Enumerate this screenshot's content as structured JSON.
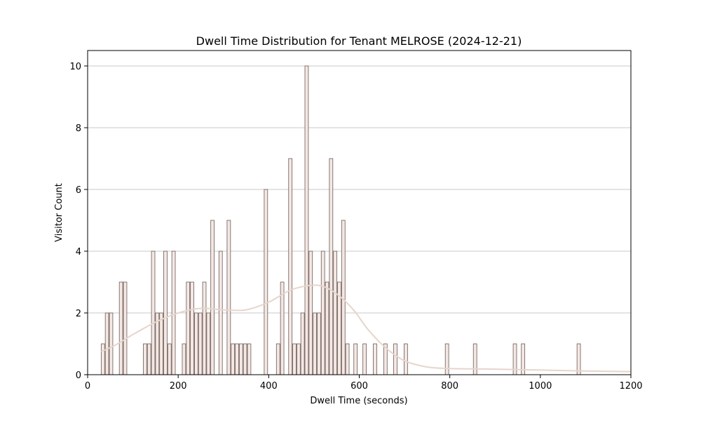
{
  "chart_data": {
    "type": "bar",
    "title": "Dwell Time Distribution for Tenant MELROSE (2024-12-21)",
    "xlabel": "Dwell Time (seconds)",
    "ylabel": "Visitor Count",
    "xlim": [
      0,
      1200
    ],
    "ylim": [
      0,
      10.5
    ],
    "xticks": [
      0,
      200,
      400,
      600,
      800,
      1000,
      1200
    ],
    "yticks": [
      0,
      2,
      4,
      6,
      8,
      10
    ],
    "grid": "y",
    "bin_width": 7.6,
    "bar_color": "#f4e8e4",
    "bar_edge_color": "#6b5a55",
    "kde_color": "#e6d5cc",
    "bins": [
      {
        "x": 30,
        "count": 1
      },
      {
        "x": 39,
        "count": 2
      },
      {
        "x": 48,
        "count": 2
      },
      {
        "x": 70,
        "count": 3
      },
      {
        "x": 79,
        "count": 3
      },
      {
        "x": 123,
        "count": 1
      },
      {
        "x": 132,
        "count": 1
      },
      {
        "x": 141,
        "count": 4
      },
      {
        "x": 150,
        "count": 2
      },
      {
        "x": 159,
        "count": 2
      },
      {
        "x": 168,
        "count": 4
      },
      {
        "x": 177,
        "count": 1
      },
      {
        "x": 186,
        "count": 4
      },
      {
        "x": 209,
        "count": 1
      },
      {
        "x": 218,
        "count": 3
      },
      {
        "x": 227,
        "count": 3
      },
      {
        "x": 236,
        "count": 2
      },
      {
        "x": 245,
        "count": 2
      },
      {
        "x": 254,
        "count": 3
      },
      {
        "x": 263,
        "count": 2
      },
      {
        "x": 272,
        "count": 5
      },
      {
        "x": 290,
        "count": 4
      },
      {
        "x": 308,
        "count": 5
      },
      {
        "x": 317,
        "count": 1
      },
      {
        "x": 326,
        "count": 1
      },
      {
        "x": 335,
        "count": 1
      },
      {
        "x": 344,
        "count": 1
      },
      {
        "x": 353,
        "count": 1
      },
      {
        "x": 390,
        "count": 6
      },
      {
        "x": 417,
        "count": 1
      },
      {
        "x": 426,
        "count": 3
      },
      {
        "x": 444,
        "count": 7
      },
      {
        "x": 453,
        "count": 1
      },
      {
        "x": 462,
        "count": 1
      },
      {
        "x": 471,
        "count": 2
      },
      {
        "x": 480,
        "count": 10
      },
      {
        "x": 489,
        "count": 4
      },
      {
        "x": 498,
        "count": 2
      },
      {
        "x": 507,
        "count": 2
      },
      {
        "x": 516,
        "count": 4
      },
      {
        "x": 525,
        "count": 3
      },
      {
        "x": 534,
        "count": 7
      },
      {
        "x": 543,
        "count": 4
      },
      {
        "x": 552,
        "count": 3
      },
      {
        "x": 561,
        "count": 5
      },
      {
        "x": 570,
        "count": 1
      },
      {
        "x": 588,
        "count": 1
      },
      {
        "x": 608,
        "count": 1
      },
      {
        "x": 631,
        "count": 1
      },
      {
        "x": 654,
        "count": 1
      },
      {
        "x": 676,
        "count": 1
      },
      {
        "x": 699,
        "count": 1
      },
      {
        "x": 790,
        "count": 1
      },
      {
        "x": 852,
        "count": 1
      },
      {
        "x": 940,
        "count": 1
      },
      {
        "x": 958,
        "count": 1
      },
      {
        "x": 1081,
        "count": 1
      }
    ],
    "kde": {
      "x": [
        30,
        60,
        100,
        150,
        200,
        250,
        300,
        350,
        400,
        450,
        500,
        530,
        560,
        590,
        620,
        660,
        700,
        750,
        800,
        900,
        1000,
        1100,
        1200
      ],
      "y": [
        0.75,
        0.95,
        1.3,
        1.7,
        2.0,
        2.15,
        2.1,
        2.1,
        2.35,
        2.75,
        2.9,
        2.8,
        2.5,
        2.05,
        1.45,
        0.85,
        0.45,
        0.25,
        0.2,
        0.18,
        0.15,
        0.12,
        0.1
      ]
    }
  }
}
